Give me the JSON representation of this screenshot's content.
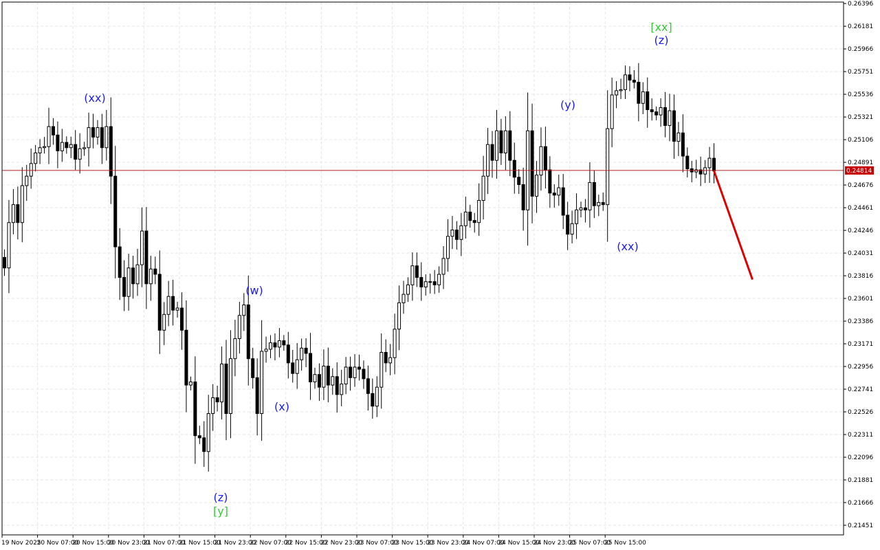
{
  "chart_data": {
    "type": "candlestick",
    "title": "",
    "xlabel": "",
    "ylabel": "",
    "ylim": [
      0.2136,
      0.2641
    ],
    "grid": true,
    "current_price": "0.24814",
    "colors": {
      "background": "#ffffff",
      "grid": "#e6e6e6",
      "candle": "#000000",
      "price_line": "#b22222",
      "price_tag": "#c80000",
      "wave_blue": "#1a1aff",
      "wave_green": "#33cc33",
      "forecast": "#e00000"
    },
    "y_ticks": [
      "0.26396",
      "0.26181",
      "0.25966",
      "0.25751",
      "0.25536",
      "0.25321",
      "0.25106",
      "0.24891",
      "0.24676",
      "0.24461",
      "0.24246",
      "0.24031",
      "0.23816",
      "0.23601",
      "0.23386",
      "0.23171",
      "0.22956",
      "0.22741",
      "0.22526",
      "0.22311",
      "0.22096",
      "0.21881",
      "0.21666",
      "0.21451"
    ],
    "x_ticks": [
      "19 Nov 2025",
      "20 Nov 07:00",
      "20 Nov 15:00",
      "20 Nov 23:00",
      "21 Nov 07:00",
      "21 Nov 15:00",
      "21 Nov 23:00",
      "22 Nov 07:00",
      "22 Nov 15:00",
      "22 Nov 23:00",
      "23 Nov 07:00",
      "23 Nov 15:00",
      "23 Nov 23:00",
      "24 Nov 07:00",
      "24 Nov 15:00",
      "24 Nov 23:00",
      "25 Nov 07:00",
      "25 Nov 15:00"
    ],
    "closes": [
      0.2389,
      0.2432,
      0.2449,
      0.2432,
      0.2467,
      0.2476,
      0.2488,
      0.2498,
      0.2503,
      0.2504,
      0.2523,
      0.2515,
      0.25,
      0.2508,
      0.2503,
      0.2506,
      0.2492,
      0.2502,
      0.2503,
      0.2522,
      0.2513,
      0.2522,
      0.2503,
      0.2523,
      0.2476,
      0.2409,
      0.238,
      0.2362,
      0.2389,
      0.2374,
      0.2392,
      0.2424,
      0.2374,
      0.2388,
      0.2383,
      0.233,
      0.2345,
      0.2362,
      0.2349,
      0.2351,
      0.233,
      0.2278,
      0.2281,
      0.223,
      0.2228,
      0.2215,
      0.2251,
      0.2266,
      0.2262,
      0.2298,
      0.2251,
      0.2303,
      0.2322,
      0.2344,
      0.2354,
      0.2303,
      0.2285,
      0.2251,
      0.231,
      0.2312,
      0.2318,
      0.2314,
      0.232,
      0.2316,
      0.2299,
      0.2289,
      0.2302,
      0.2313,
      0.2308,
      0.2281,
      0.2288,
      0.2276,
      0.2296,
      0.2278,
      0.2286,
      0.2269,
      0.2279,
      0.2295,
      0.2285,
      0.2295,
      0.2293,
      0.2284,
      0.227,
      0.2258,
      0.2276,
      0.2309,
      0.2299,
      0.2304,
      0.2331,
      0.2356,
      0.2364,
      0.2373,
      0.2391,
      0.238,
      0.2371,
      0.2376,
      0.2376,
      0.2373,
      0.2383,
      0.2398,
      0.2419,
      0.2425,
      0.2416,
      0.2429,
      0.2442,
      0.2434,
      0.2432,
      0.2453,
      0.2476,
      0.2506,
      0.2491,
      0.2519,
      0.2498,
      0.2519,
      0.2491,
      0.2475,
      0.2468,
      0.2444,
      0.2519,
      0.2457,
      0.2477,
      0.2504,
      0.2482,
      0.246,
      0.2458,
      0.2465,
      0.2439,
      0.2421,
      0.2431,
      0.2444,
      0.2446,
      0.2444,
      0.247,
      0.2448,
      0.2451,
      0.2449,
      0.2521,
      0.2553,
      0.2557,
      0.2558,
      0.2572,
      0.2567,
      0.2565,
      0.2545,
      0.2556,
      0.2539,
      0.2537,
      0.2534,
      0.2541,
      0.2524,
      0.2538,
      0.2509,
      0.2517,
      0.2495,
      0.2483,
      0.248,
      0.2482,
      0.2478,
      0.2484,
      0.2493,
      0.2481
    ],
    "wave_labels": [
      {
        "text": "(xx)",
        "style": "blue"
      },
      {
        "text": "(w)",
        "style": "blue"
      },
      {
        "text": "(x)",
        "style": "blue"
      },
      {
        "text": "(z)",
        "style": "blue"
      },
      {
        "text": "[y]",
        "style": "green"
      },
      {
        "text": "(y)",
        "style": "blue"
      },
      {
        "text": "(xx)",
        "style": "blue"
      },
      {
        "text": "[xx]",
        "style": "green"
      },
      {
        "text": "(z)",
        "style": "blue"
      }
    ],
    "forecast": {
      "from": 0.2481,
      "to": 0.2378
    }
  }
}
